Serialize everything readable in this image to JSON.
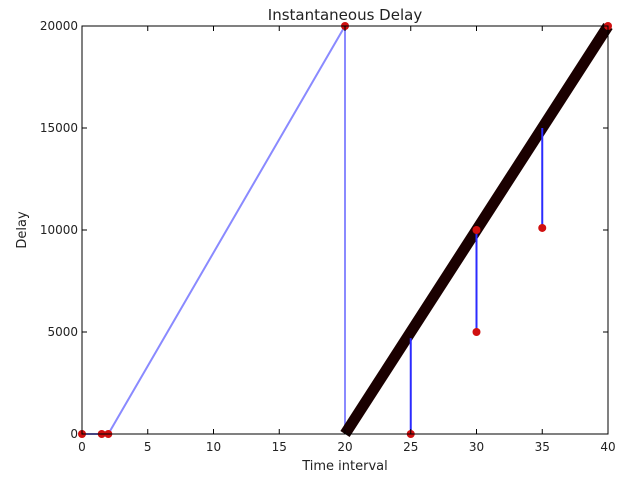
{
  "chart_data": {
    "type": "line",
    "title": "Instantaneous Delay",
    "xlabel": "Time interval",
    "ylabel": "Delay",
    "xlim": [
      0,
      40
    ],
    "ylim": [
      0,
      20000
    ],
    "xticks": [
      0,
      5,
      10,
      15,
      20,
      25,
      30,
      35,
      40
    ],
    "yticks": [
      0,
      5000,
      10000,
      15000,
      20000
    ],
    "grid": false,
    "series": [
      {
        "color": "#8a8aff",
        "points": [
          [
            0,
            0
          ],
          [
            1.5,
            0
          ],
          [
            2,
            0
          ],
          [
            20,
            20000
          ],
          [
            20,
            0
          ]
        ]
      },
      {
        "color": "#1a0000",
        "points": [
          [
            20,
            0
          ],
          [
            40,
            20000
          ]
        ]
      },
      {
        "color": "#2b2bff",
        "segments": [
          [
            [
              25,
              0
            ],
            [
              25,
              4700
            ]
          ],
          [
            [
              30,
              5000
            ],
            [
              30,
              10000
            ]
          ],
          [
            [
              35,
              10000
            ],
            [
              35,
              15000
            ]
          ]
        ]
      }
    ],
    "markers": {
      "color": "#d01010",
      "points": [
        [
          0,
          0
        ],
        [
          1.5,
          0
        ],
        [
          2,
          0
        ],
        [
          20,
          20000
        ],
        [
          25,
          0
        ],
        [
          30,
          5000
        ],
        [
          30,
          10000
        ],
        [
          35,
          10100
        ],
        [
          40,
          20000
        ]
      ]
    }
  }
}
